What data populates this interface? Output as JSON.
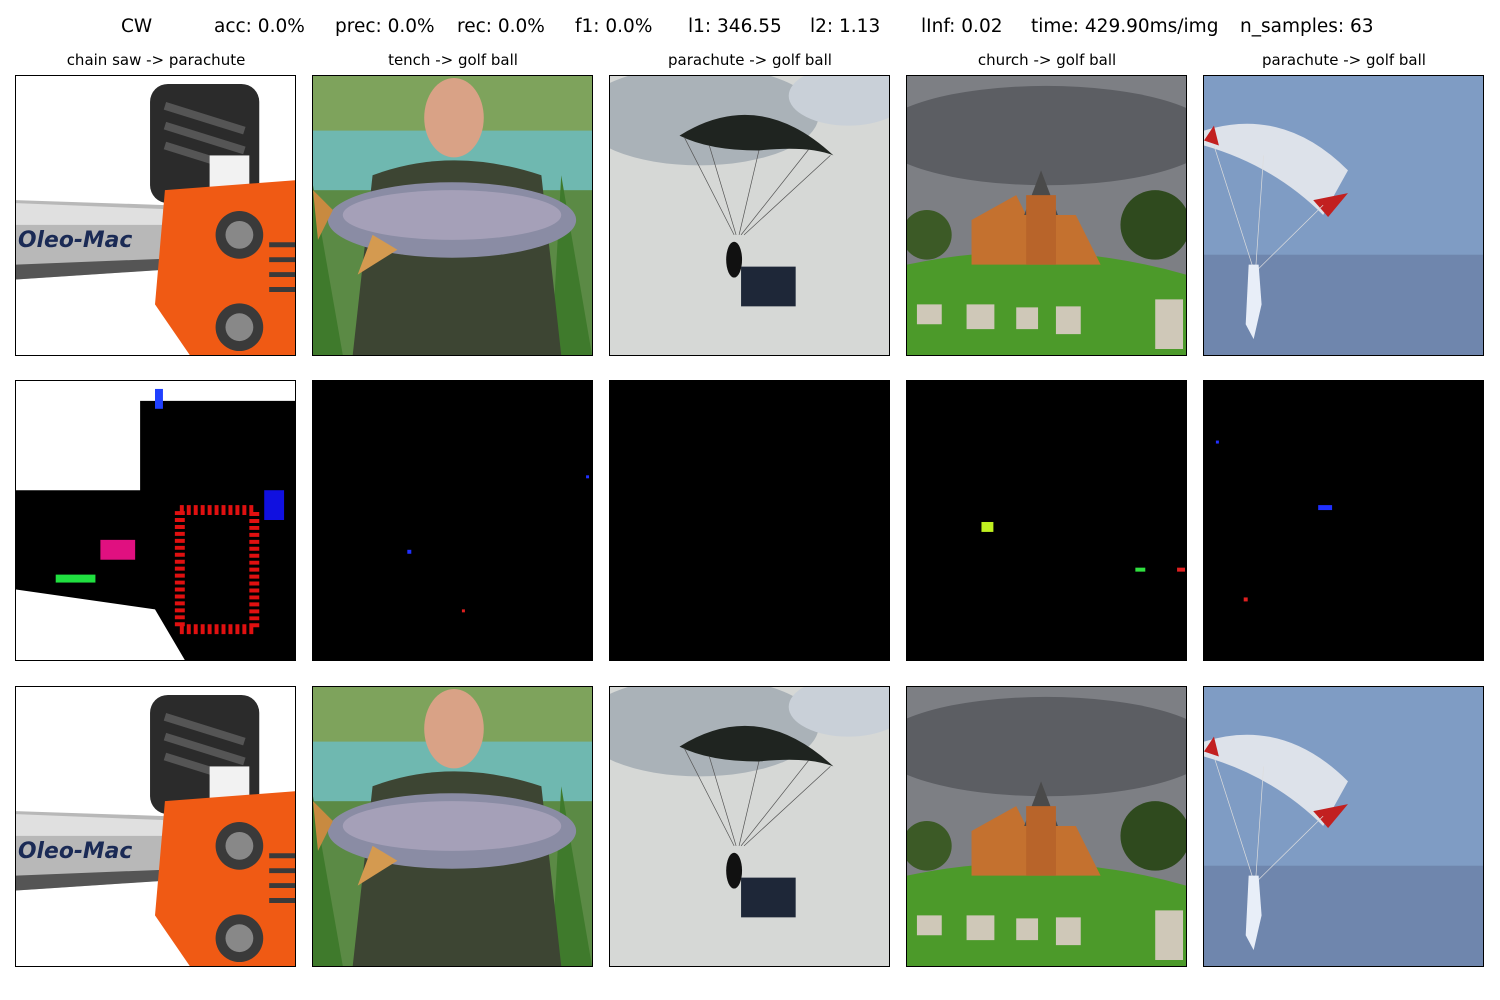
{
  "header": {
    "method": "CW",
    "acc": "acc: 0.0%",
    "prec": "prec: 0.0%",
    "rec": "rec: 0.0%",
    "f1": "f1: 0.0%",
    "l1": "l1: 346.55",
    "l2": "l2: 1.13",
    "linf": "lInf: 0.02",
    "time": "time: 429.90ms/img",
    "n_samples": "n_samples: 63"
  },
  "columns": [
    {
      "title": "chain saw -> parachute",
      "subject": "chainsaw"
    },
    {
      "title": "tench -> golf ball",
      "subject": "man-holding-fish"
    },
    {
      "title": "parachute -> golf ball",
      "subject": "parachutist-grey-sky"
    },
    {
      "title": "church -> golf ball",
      "subject": "church-on-hill"
    },
    {
      "title": "parachute -> golf ball",
      "subject": "parachutist-blue-sky"
    }
  ],
  "rows": [
    "original",
    "perturbation",
    "adversarial"
  ],
  "logo_text": "Oleo-Mac",
  "colors": {
    "perturb_background": "#000000",
    "chainsaw_orange": "#f05a14",
    "sky_grey": "#d6d8d6",
    "sky_blue": "#7f9cc4",
    "grass_green": "#4c9a2a"
  }
}
